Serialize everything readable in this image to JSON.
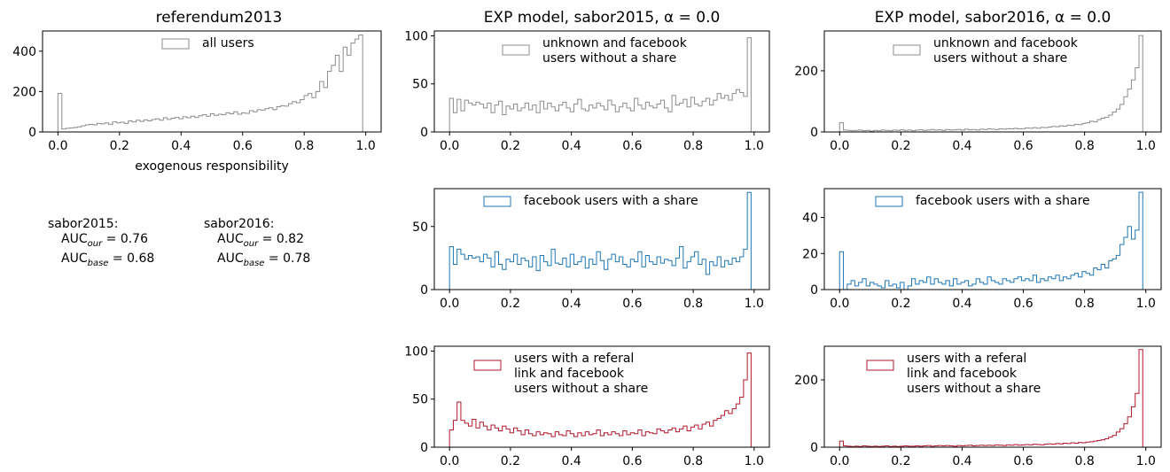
{
  "column_titles": [
    "referendum2013",
    "EXP model, sabor2015, α = 0.0",
    "EXP model, sabor2016, α = 0.0"
  ],
  "auc": [
    {
      "name": "sabor2015:",
      "our_prefix": "AUC",
      "our_sub": "our",
      "our_value": " = 0.76",
      "base_prefix": "AUC",
      "base_sub": "base",
      "base_value": " = 0.68"
    },
    {
      "name": "sabor2016:",
      "our_prefix": "AUC",
      "our_sub": "our",
      "our_value": " = 0.82",
      "base_prefix": "AUC",
      "base_sub": "base",
      "base_value": " = 0.78"
    }
  ],
  "colors": {
    "gray": "#8c8c8c",
    "blue": "#1f77b4",
    "red": "#b2182b"
  },
  "chart_data": [
    {
      "type": "histogram",
      "title": "referendum2013",
      "xlabel": "exogenous responsibility",
      "xlim": [
        -0.05,
        1.05
      ],
      "ylim": [
        0,
        500
      ],
      "xticks": [
        0.0,
        0.2,
        0.4,
        0.6,
        0.8,
        1.0
      ],
      "xtick_labels": [
        "0.0",
        "0.2",
        "0.4",
        "0.6",
        "0.8",
        "1.0"
      ],
      "yticks": [
        0,
        200,
        400
      ],
      "ytick_labels": [
        "0",
        "200",
        "400"
      ],
      "series": [
        {
          "name": "all users",
          "color": "#8c8c8c",
          "values": [
            190,
            15,
            18,
            20,
            22,
            25,
            30,
            35,
            38,
            35,
            42,
            40,
            45,
            38,
            50,
            45,
            48,
            42,
            55,
            50,
            58,
            52,
            60,
            55,
            62,
            65,
            58,
            70,
            62,
            68,
            72,
            65,
            75,
            70,
            78,
            72,
            80,
            85,
            78,
            90,
            82,
            88,
            85,
            95,
            90,
            100,
            88,
            95,
            92,
            105,
            100,
            110,
            108,
            115,
            120,
            110,
            125,
            130,
            128,
            140,
            150,
            145,
            160,
            180,
            190,
            170,
            200,
            250,
            220,
            300,
            330,
            380,
            300,
            420,
            380,
            440,
            460,
            480
          ]
        }
      ]
    },
    {
      "type": "histogram",
      "title": "EXP model, sabor2015, α = 0.0",
      "xlabel": "",
      "xlim": [
        -0.05,
        1.05
      ],
      "ylim": [
        0,
        105
      ],
      "xticks": [
        0.0,
        0.2,
        0.4,
        0.6,
        0.8,
        1.0
      ],
      "xtick_labels": [
        "0.0",
        "0.2",
        "0.4",
        "0.6",
        "0.8",
        "1.0"
      ],
      "yticks": [
        0,
        50,
        100
      ],
      "ytick_labels": [
        "0",
        "50",
        "100"
      ],
      "series": [
        {
          "name": "unknown and facebook users without a share",
          "color": "#8c8c8c",
          "values": [
            35,
            20,
            34,
            22,
            33,
            30,
            28,
            31,
            29,
            25,
            30,
            20,
            28,
            32,
            18,
            27,
            24,
            29,
            22,
            25,
            30,
            23,
            28,
            20,
            32,
            24,
            30,
            26,
            22,
            28,
            31,
            25,
            21,
            29,
            34,
            24,
            22,
            28,
            25,
            30,
            27,
            23,
            33,
            28,
            21,
            26,
            30,
            25,
            22,
            35,
            28,
            24,
            31,
            27,
            25,
            29,
            33,
            25,
            21,
            38,
            28,
            30,
            34,
            26,
            36,
            29,
            27,
            32,
            35,
            28,
            33,
            40,
            35,
            38,
            33,
            40,
            44,
            41,
            37,
            98
          ]
        }
      ]
    },
    {
      "type": "histogram",
      "title": "EXP model, sabor2016, α = 0.0",
      "xlabel": "",
      "xlim": [
        -0.05,
        1.05
      ],
      "ylim": [
        0,
        330
      ],
      "xticks": [
        0.0,
        0.2,
        0.4,
        0.6,
        0.8,
        1.0
      ],
      "xtick_labels": [
        "0.0",
        "0.2",
        "0.4",
        "0.6",
        "0.8",
        "1.0"
      ],
      "yticks": [
        0,
        200
      ],
      "ytick_labels": [
        "0",
        "200"
      ],
      "series": [
        {
          "name": "unknown and facebook users without a share",
          "color": "#8c8c8c",
          "values": [
            30,
            6,
            5,
            4,
            5,
            6,
            4,
            5,
            3,
            5,
            4,
            6,
            5,
            4,
            6,
            5,
            7,
            5,
            6,
            4,
            6,
            7,
            5,
            6,
            8,
            6,
            7,
            5,
            8,
            6,
            7,
            8,
            6,
            9,
            7,
            8,
            6,
            9,
            8,
            10,
            9,
            8,
            10,
            9,
            11,
            10,
            12,
            10,
            11,
            13,
            12,
            14,
            12,
            15,
            14,
            16,
            18,
            17,
            20,
            19,
            22,
            21,
            25,
            24,
            28,
            30,
            35,
            33,
            40,
            45,
            48,
            55,
            65,
            75,
            90,
            115,
            140,
            170,
            210,
            315
          ]
        }
      ]
    },
    {
      "type": "histogram",
      "title": "",
      "xlabel": "",
      "xlim": [
        -0.05,
        1.05
      ],
      "ylim": [
        0,
        80
      ],
      "xticks": [
        0.0,
        0.2,
        0.4,
        0.6,
        0.8,
        1.0
      ],
      "xtick_labels": [
        "0.0",
        "0.2",
        "0.4",
        "0.6",
        "0.8",
        "1.0"
      ],
      "yticks": [
        0,
        50
      ],
      "ytick_labels": [
        "0",
        "50"
      ],
      "series": [
        {
          "name": "facebook users with a share",
          "color": "#1f77b4",
          "values": [
            34,
            20,
            32,
            28,
            24,
            27,
            25,
            26,
            22,
            28,
            25,
            18,
            30,
            20,
            16,
            24,
            22,
            28,
            20,
            25,
            23,
            18,
            26,
            15,
            27,
            22,
            19,
            32,
            21,
            20,
            25,
            18,
            28,
            20,
            22,
            26,
            17,
            24,
            20,
            30,
            23,
            16,
            24,
            28,
            22,
            26,
            20,
            18,
            24,
            22,
            30,
            18,
            27,
            22,
            20,
            26,
            21,
            24,
            23,
            19,
            25,
            34,
            17,
            22,
            26,
            30,
            20,
            24,
            12,
            22,
            19,
            26,
            18,
            23,
            20,
            25,
            22,
            26,
            32,
            77
          ]
        }
      ]
    },
    {
      "type": "histogram",
      "title": "",
      "xlabel": "",
      "xlim": [
        -0.05,
        1.05
      ],
      "ylim": [
        0,
        56
      ],
      "xticks": [
        0.0,
        0.2,
        0.4,
        0.6,
        0.8,
        1.0
      ],
      "xtick_labels": [
        "0.0",
        "0.2",
        "0.4",
        "0.6",
        "0.8",
        "1.0"
      ],
      "yticks": [
        0,
        20,
        40
      ],
      "ytick_labels": [
        "0",
        "20",
        "40"
      ],
      "series": [
        {
          "name": "facebook users with a share",
          "color": "#1f77b4",
          "values": [
            21,
            0,
            3,
            5,
            2,
            4,
            6,
            2,
            4,
            3,
            2,
            1,
            5,
            2,
            3,
            1,
            4,
            0,
            2,
            6,
            3,
            5,
            4,
            7,
            3,
            6,
            4,
            3,
            5,
            2,
            6,
            3,
            4,
            5,
            2,
            3,
            6,
            4,
            3,
            7,
            5,
            4,
            3,
            6,
            5,
            4,
            6,
            7,
            5,
            6,
            5,
            8,
            4,
            6,
            5,
            7,
            6,
            8,
            5,
            7,
            6,
            8,
            9,
            7,
            10,
            9,
            8,
            12,
            11,
            14,
            12,
            16,
            17,
            19,
            25,
            29,
            35,
            28,
            33,
            54
          ]
        }
      ]
    },
    {
      "type": "histogram",
      "title": "",
      "xlabel": "",
      "xlim": [
        -0.05,
        1.05
      ],
      "ylim": [
        0,
        105
      ],
      "xticks": [
        0.0,
        0.2,
        0.4,
        0.6,
        0.8,
        1.0
      ],
      "xtick_labels": [
        "0.0",
        "0.2",
        "0.4",
        "0.6",
        "0.8",
        "1.0"
      ],
      "yticks": [
        0,
        50,
        100
      ],
      "ytick_labels": [
        "0",
        "50",
        "100"
      ],
      "series": [
        {
          "name": "users with a referal link and facebook users without a share",
          "color": "#b2182b",
          "values": [
            18,
            28,
            47,
            28,
            25,
            22,
            29,
            20,
            26,
            22,
            18,
            23,
            20,
            17,
            22,
            19,
            15,
            20,
            17,
            13,
            18,
            14,
            12,
            16,
            13,
            15,
            14,
            11,
            16,
            13,
            12,
            17,
            14,
            11,
            15,
            12,
            16,
            13,
            14,
            18,
            12,
            15,
            13,
            16,
            14,
            12,
            17,
            13,
            15,
            14,
            18,
            12,
            16,
            15,
            14,
            19,
            17,
            15,
            18,
            20,
            16,
            19,
            22,
            17,
            21,
            23,
            19,
            24,
            26,
            22,
            28,
            30,
            33,
            38,
            35,
            40,
            45,
            52,
            70,
            98
          ]
        }
      ]
    },
    {
      "type": "histogram",
      "title": "",
      "xlabel": "",
      "xlim": [
        -0.05,
        1.05
      ],
      "ylim": [
        0,
        300
      ],
      "xticks": [
        0.0,
        0.2,
        0.4,
        0.6,
        0.8,
        1.0
      ],
      "xtick_labels": [
        "0.0",
        "0.2",
        "0.4",
        "0.6",
        "0.8",
        "1.0"
      ],
      "yticks": [
        0,
        200
      ],
      "ytick_labels": [
        "0",
        "200"
      ],
      "series": [
        {
          "name": "users with a referal link and facebook users without a share",
          "color": "#b2182b",
          "values": [
            18,
            4,
            3,
            2,
            3,
            2,
            4,
            3,
            2,
            3,
            2,
            3,
            4,
            2,
            3,
            2,
            3,
            4,
            3,
            3,
            4,
            3,
            4,
            5,
            3,
            4,
            5,
            4,
            5,
            4,
            3,
            5,
            4,
            5,
            6,
            4,
            5,
            6,
            5,
            6,
            5,
            7,
            6,
            5,
            7,
            6,
            8,
            6,
            7,
            8,
            7,
            9,
            8,
            7,
            9,
            10,
            9,
            11,
            10,
            12,
            11,
            13,
            12,
            14,
            13,
            15,
            16,
            18,
            20,
            22,
            25,
            30,
            35,
            45,
            55,
            70,
            90,
            120,
            160,
            290
          ]
        }
      ]
    }
  ]
}
